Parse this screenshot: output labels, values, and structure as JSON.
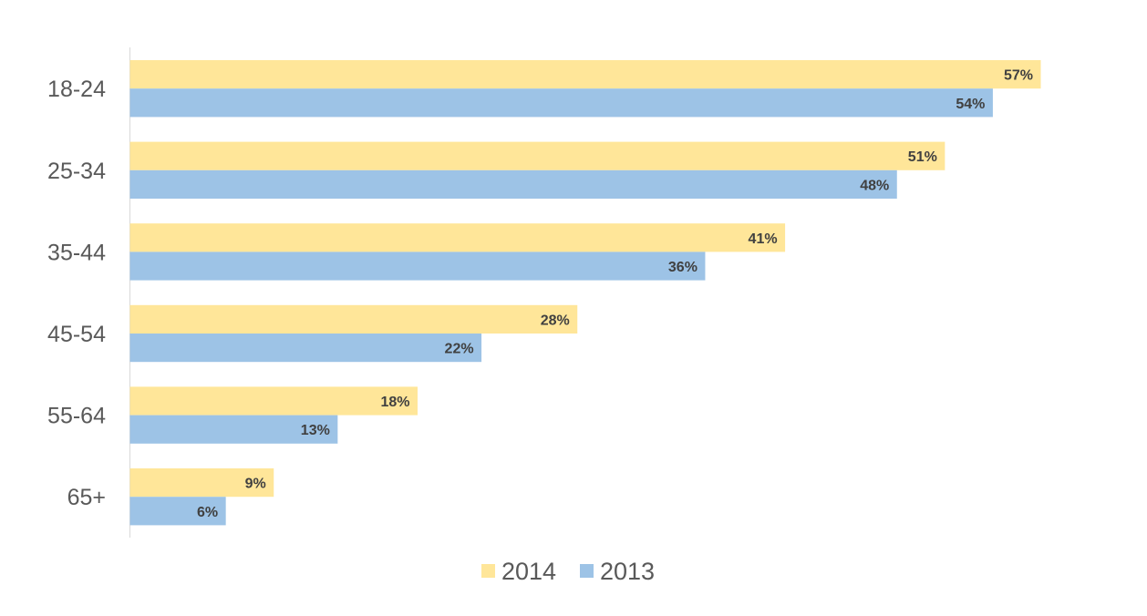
{
  "chart_data": {
    "type": "bar",
    "orientation": "horizontal",
    "categories": [
      "18-24",
      "25-34",
      "35-44",
      "45-54",
      "55-64",
      "65+"
    ],
    "series": [
      {
        "name": "2014",
        "color": "#FFE699",
        "values": [
          57,
          51,
          41,
          28,
          18,
          9
        ]
      },
      {
        "name": "2013",
        "color": "#9DC3E6",
        "values": [
          54,
          48,
          36,
          22,
          13,
          6
        ]
      }
    ],
    "value_format": "percent",
    "xlim": [
      0,
      57
    ],
    "grid": false,
    "legend_position": "bottom",
    "title": "",
    "xlabel": "",
    "ylabel": ""
  }
}
